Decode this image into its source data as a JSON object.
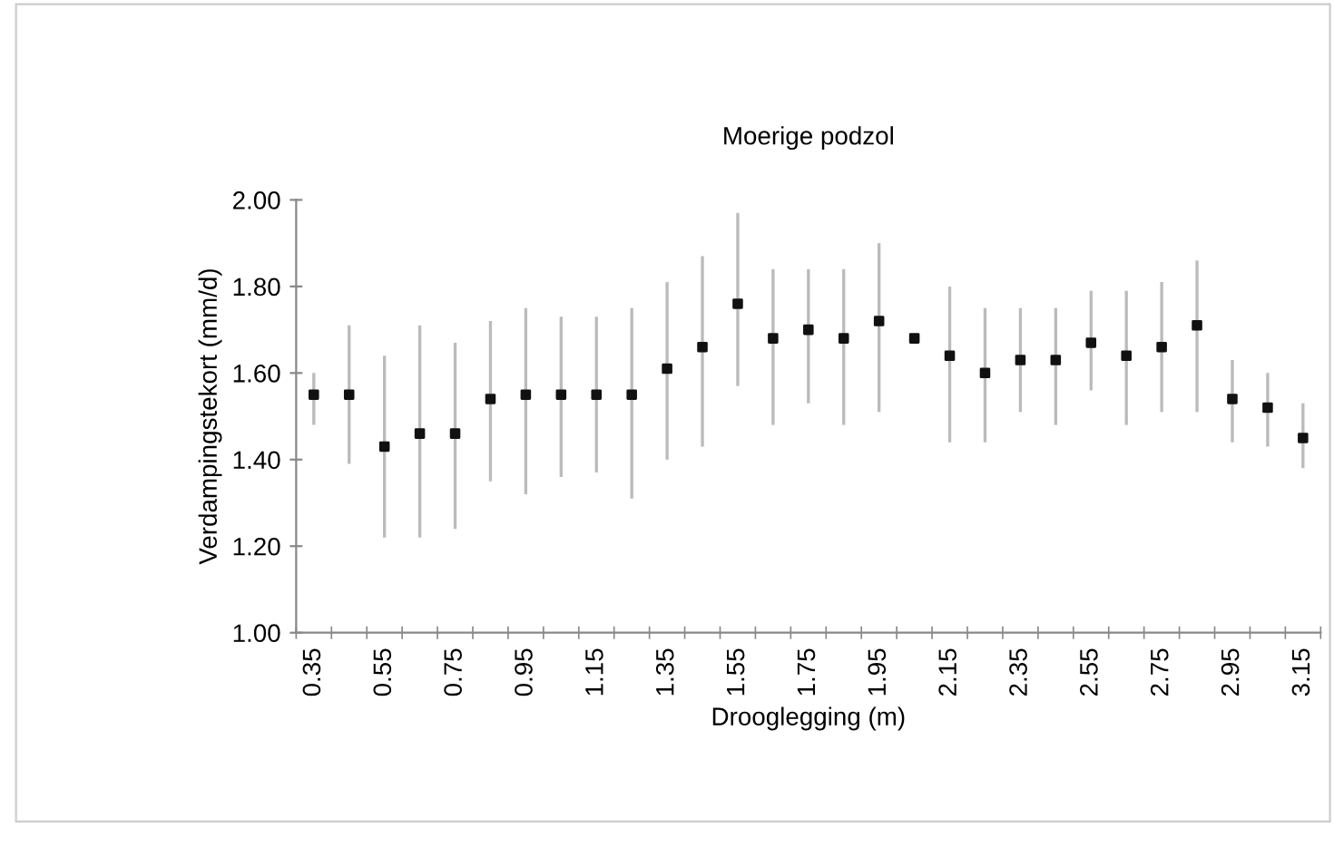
{
  "chart_data": {
    "type": "scatter",
    "title": "Moerige podzol",
    "xlabel": "Drooglegging (m)",
    "ylabel": "Verdampingstekort (mm/d)",
    "categories": [
      "0.35",
      null,
      "0.55",
      null,
      "0.75",
      null,
      "0.95",
      null,
      "1.15",
      null,
      "1.35",
      null,
      "1.55",
      null,
      "1.75",
      null,
      "1.95",
      null,
      "2.15",
      null,
      "2.35",
      null,
      "2.55",
      null,
      "2.75",
      null,
      "2.95",
      null,
      "3.15"
    ],
    "values": [
      1.55,
      1.55,
      1.43,
      1.46,
      1.46,
      1.54,
      1.55,
      1.55,
      1.55,
      1.55,
      1.61,
      1.66,
      1.76,
      1.68,
      1.7,
      1.68,
      1.72,
      1.68,
      1.64,
      1.6,
      1.63,
      1.63,
      1.67,
      1.64,
      1.66,
      1.71,
      1.54,
      1.52,
      1.45
    ],
    "errors": [
      [
        1.48,
        1.6
      ],
      [
        1.39,
        1.71
      ],
      [
        1.22,
        1.64
      ],
      [
        1.22,
        1.71
      ],
      [
        1.24,
        1.67
      ],
      [
        1.35,
        1.72
      ],
      [
        1.32,
        1.75
      ],
      [
        1.36,
        1.73
      ],
      [
        1.37,
        1.73
      ],
      [
        1.31,
        1.75
      ],
      [
        1.4,
        1.81
      ],
      [
        1.43,
        1.87
      ],
      [
        1.57,
        1.97
      ],
      [
        1.48,
        1.84
      ],
      [
        1.53,
        1.84
      ],
      [
        1.48,
        1.84
      ],
      [
        1.51,
        1.9
      ],
      null,
      [
        1.44,
        1.8
      ],
      [
        1.44,
        1.75
      ],
      [
        1.51,
        1.75
      ],
      [
        1.48,
        1.75
      ],
      [
        1.56,
        1.79
      ],
      [
        1.48,
        1.79
      ],
      [
        1.51,
        1.81
      ],
      [
        1.51,
        1.86
      ],
      [
        1.44,
        1.63
      ],
      [
        1.43,
        1.6
      ],
      [
        1.38,
        1.53
      ]
    ],
    "color": "#111111",
    "marker": "square",
    "grid": false,
    "ylim": [
      1.0,
      2.0
    ],
    "yticks": [
      {
        "value": 1.0,
        "label": "1.00"
      },
      {
        "value": 1.2,
        "label": "1.20"
      },
      {
        "value": 1.4,
        "label": "1.40"
      },
      {
        "value": 1.6,
        "label": "1.60"
      },
      {
        "value": 1.8,
        "label": "1.80"
      },
      {
        "value": 2.0,
        "label": "2.00"
      }
    ]
  }
}
